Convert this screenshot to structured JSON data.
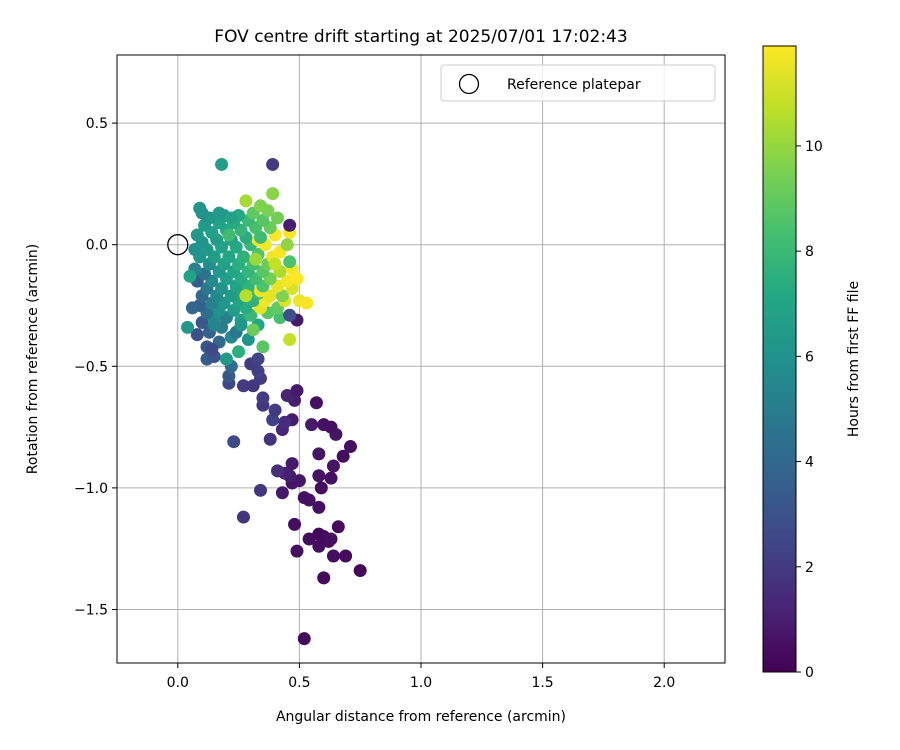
{
  "chart_data": {
    "type": "scatter",
    "title": "FOV centre drift starting at 2025/07/01 17:02:43",
    "xlabel": "Angular distance from reference (arcmin)",
    "ylabel": "Rotation from reference (arcmin)",
    "xlim": [
      -0.25,
      2.25
    ],
    "ylim": [
      -1.72,
      0.78
    ],
    "xticks": [
      0.0,
      0.5,
      1.0,
      1.5,
      2.0
    ],
    "xtick_labels": [
      "0.0",
      "0.5",
      "1.0",
      "1.5",
      "2.0"
    ],
    "yticks": [
      -1.5,
      -1.0,
      -0.5,
      0.0,
      0.5
    ],
    "ytick_labels": [
      "−1.5",
      "−1.0",
      "−0.5",
      "0.0",
      "0.5"
    ],
    "grid": true,
    "legend": {
      "placement": "top-right",
      "entries": [
        "Reference platepar"
      ]
    },
    "reference_point": {
      "x": 0.0,
      "y": 0.0,
      "marker": "open-circle"
    },
    "colorbar": {
      "label": "Hours from first FF file",
      "colormap": "viridis",
      "range": [
        0,
        11.9
      ],
      "ticks": [
        0,
        2,
        4,
        6,
        8,
        10
      ],
      "tick_labels": [
        "0",
        "2",
        "4",
        "6",
        "8",
        "10"
      ]
    },
    "series": [
      {
        "marker": "filled-circle",
        "points": [
          [
            0.52,
            -1.62,
            0.3
          ],
          [
            0.6,
            -1.37,
            0.3
          ],
          [
            0.75,
            -1.34,
            0.2
          ],
          [
            0.69,
            -1.28,
            0.3
          ],
          [
            0.64,
            -1.28,
            0.4
          ],
          [
            0.49,
            -1.26,
            0.5
          ],
          [
            0.58,
            -1.24,
            0.4
          ],
          [
            0.62,
            -1.22,
            0.3
          ],
          [
            0.54,
            -1.21,
            0.4
          ],
          [
            0.58,
            -1.19,
            0.2
          ],
          [
            0.6,
            -1.2,
            0.3
          ],
          [
            0.63,
            -1.21,
            0.5
          ],
          [
            0.66,
            -1.16,
            0.3
          ],
          [
            0.48,
            -1.15,
            0.4
          ],
          [
            0.27,
            -1.12,
            1.8
          ],
          [
            0.58,
            -1.08,
            0.5
          ],
          [
            0.54,
            -1.05,
            0.6
          ],
          [
            0.52,
            -1.04,
            0.5
          ],
          [
            0.43,
            -1.02,
            0.8
          ],
          [
            0.34,
            -1.01,
            1.9
          ],
          [
            0.59,
            -1.0,
            0.4
          ],
          [
            0.47,
            -0.98,
            0.6
          ],
          [
            0.5,
            -0.97,
            0.7
          ],
          [
            0.63,
            -0.96,
            0.5
          ],
          [
            0.58,
            -0.95,
            0.6
          ],
          [
            0.46,
            -0.95,
            0.9
          ],
          [
            0.44,
            -0.94,
            1.1
          ],
          [
            0.41,
            -0.93,
            1.6
          ],
          [
            0.64,
            -0.91,
            0.6
          ],
          [
            0.47,
            -0.9,
            0.8
          ],
          [
            0.68,
            -0.87,
            0.4
          ],
          [
            0.58,
            -0.86,
            0.7
          ],
          [
            0.23,
            -0.81,
            2.7
          ],
          [
            0.71,
            -0.83,
            0.5
          ],
          [
            0.38,
            -0.8,
            1.8
          ],
          [
            0.65,
            -0.78,
            0.6
          ],
          [
            0.63,
            -0.75,
            0.5
          ],
          [
            0.55,
            -0.74,
            0.8
          ],
          [
            0.43,
            -0.76,
            1.2
          ],
          [
            0.6,
            -0.74,
            0.5
          ],
          [
            0.47,
            -0.72,
            0.9
          ],
          [
            0.44,
            -0.73,
            1.5
          ],
          [
            0.39,
            -0.72,
            2.3
          ],
          [
            0.4,
            -0.68,
            2.0
          ],
          [
            0.35,
            -0.66,
            1.9
          ],
          [
            0.57,
            -0.65,
            0.5
          ],
          [
            0.48,
            -0.64,
            1.0
          ],
          [
            0.45,
            -0.62,
            1.2
          ],
          [
            0.49,
            -0.6,
            0.8
          ],
          [
            0.35,
            -0.63,
            2.1
          ],
          [
            0.27,
            -0.58,
            2.0
          ],
          [
            0.31,
            -0.58,
            1.9
          ],
          [
            0.34,
            -0.55,
            2.1
          ],
          [
            0.21,
            -0.57,
            2.5
          ],
          [
            0.21,
            -0.54,
            3.2
          ],
          [
            0.33,
            -0.52,
            2.3
          ],
          [
            0.3,
            -0.49,
            2.0
          ],
          [
            0.33,
            -0.47,
            2.4
          ],
          [
            0.22,
            -0.5,
            4.1
          ],
          [
            0.12,
            -0.47,
            3.5
          ],
          [
            0.15,
            -0.46,
            3.0
          ],
          [
            0.2,
            -0.47,
            6.4
          ],
          [
            0.35,
            -0.42,
            8.8
          ],
          [
            0.12,
            -0.42,
            3.3
          ],
          [
            0.17,
            -0.4,
            4.0
          ],
          [
            0.46,
            -0.39,
            10.9
          ],
          [
            0.29,
            -0.39,
            6.1
          ],
          [
            0.22,
            -0.38,
            5.5
          ],
          [
            0.08,
            -0.37,
            2.9
          ],
          [
            0.13,
            -0.36,
            3.7
          ],
          [
            0.24,
            -0.36,
            4.7
          ],
          [
            0.04,
            -0.34,
            6.3
          ],
          [
            0.18,
            -0.34,
            5.0
          ],
          [
            0.33,
            -0.33,
            7.1
          ],
          [
            0.49,
            -0.31,
            0.9
          ],
          [
            0.42,
            -0.3,
            8.4
          ],
          [
            0.1,
            -0.32,
            3.2
          ],
          [
            0.15,
            -0.31,
            5.8
          ],
          [
            0.2,
            -0.3,
            5.1
          ],
          [
            0.26,
            -0.31,
            6.8
          ],
          [
            0.3,
            -0.29,
            7.9
          ],
          [
            0.37,
            -0.28,
            8.7
          ],
          [
            0.46,
            -0.29,
            2.8
          ],
          [
            0.12,
            -0.28,
            4.4
          ],
          [
            0.17,
            -0.27,
            6.0
          ],
          [
            0.23,
            -0.27,
            6.6
          ],
          [
            0.28,
            -0.26,
            7.3
          ],
          [
            0.34,
            -0.26,
            11.5
          ],
          [
            0.41,
            -0.26,
            9.0
          ],
          [
            0.09,
            -0.25,
            3.6
          ],
          [
            0.14,
            -0.24,
            5.2
          ],
          [
            0.19,
            -0.24,
            6.2
          ],
          [
            0.25,
            -0.23,
            7.0
          ],
          [
            0.31,
            -0.23,
            7.6
          ],
          [
            0.36,
            -0.23,
            11.7
          ],
          [
            0.44,
            -0.23,
            11.3
          ],
          [
            0.5,
            -0.23,
            11.6
          ],
          [
            0.53,
            -0.24,
            11.8
          ],
          [
            0.1,
            -0.21,
            4.0
          ],
          [
            0.16,
            -0.21,
            5.5
          ],
          [
            0.22,
            -0.21,
            6.5
          ],
          [
            0.27,
            -0.2,
            7.2
          ],
          [
            0.33,
            -0.2,
            8.0
          ],
          [
            0.38,
            -0.21,
            11.4
          ],
          [
            0.43,
            -0.21,
            9.6
          ],
          [
            0.34,
            -0.19,
            11.6
          ],
          [
            0.12,
            -0.18,
            4.8
          ],
          [
            0.18,
            -0.18,
            6.1
          ],
          [
            0.24,
            -0.17,
            6.9
          ],
          [
            0.29,
            -0.17,
            7.7
          ],
          [
            0.35,
            -0.17,
            8.5
          ],
          [
            0.41,
            -0.17,
            11.5
          ],
          [
            0.47,
            -0.18,
            11.2
          ],
          [
            0.08,
            -0.15,
            3.4
          ],
          [
            0.14,
            -0.15,
            5.6
          ],
          [
            0.2,
            -0.14,
            6.7
          ],
          [
            0.26,
            -0.14,
            7.4
          ],
          [
            0.32,
            -0.14,
            8.2
          ],
          [
            0.38,
            -0.14,
            9.4
          ],
          [
            0.45,
            -0.15,
            11.7
          ],
          [
            0.49,
            -0.14,
            11.9
          ],
          [
            0.11,
            -0.12,
            4.5
          ],
          [
            0.17,
            -0.11,
            6.3
          ],
          [
            0.23,
            -0.11,
            7.1
          ],
          [
            0.29,
            -0.11,
            7.8
          ],
          [
            0.35,
            -0.11,
            8.8
          ],
          [
            0.42,
            -0.11,
            10.4
          ],
          [
            0.47,
            -0.1,
            11.8
          ],
          [
            0.07,
            -0.1,
            5.3
          ],
          [
            0.13,
            -0.08,
            5.9
          ],
          [
            0.19,
            -0.08,
            6.8
          ],
          [
            0.25,
            -0.08,
            7.5
          ],
          [
            0.31,
            -0.08,
            8.3
          ],
          [
            0.37,
            -0.08,
            9.2
          ],
          [
            0.46,
            -0.07,
            8.5
          ],
          [
            0.09,
            -0.05,
            6.2
          ],
          [
            0.15,
            -0.05,
            6.6
          ],
          [
            0.21,
            -0.05,
            7.0
          ],
          [
            0.27,
            -0.05,
            7.6
          ],
          [
            0.33,
            -0.04,
            8.6
          ],
          [
            0.39,
            -0.05,
            11.6
          ],
          [
            0.42,
            -0.03,
            11.8
          ],
          [
            0.07,
            -0.02,
            6.0
          ],
          [
            0.12,
            -0.02,
            6.4
          ],
          [
            0.18,
            -0.01,
            6.9
          ],
          [
            0.24,
            -0.01,
            7.2
          ],
          [
            0.3,
            0.0,
            7.9
          ],
          [
            0.36,
            0.0,
            11.7
          ],
          [
            0.33,
            0.02,
            11.8
          ],
          [
            0.1,
            0.01,
            6.1
          ],
          [
            0.16,
            0.02,
            6.7
          ],
          [
            0.22,
            0.02,
            7.0
          ],
          [
            0.28,
            0.03,
            7.4
          ],
          [
            0.34,
            0.03,
            8.1
          ],
          [
            0.4,
            0.04,
            11.9
          ],
          [
            0.46,
            0.05,
            11.8
          ],
          [
            0.08,
            0.04,
            6.3
          ],
          [
            0.14,
            0.05,
            6.8
          ],
          [
            0.2,
            0.06,
            7.1
          ],
          [
            0.26,
            0.06,
            7.8
          ],
          [
            0.32,
            0.07,
            8.4
          ],
          [
            0.38,
            0.07,
            9.1
          ],
          [
            0.11,
            0.08,
            6.5
          ],
          [
            0.17,
            0.09,
            6.9
          ],
          [
            0.23,
            0.09,
            7.3
          ],
          [
            0.29,
            0.1,
            8.0
          ],
          [
            0.35,
            0.1,
            8.7
          ],
          [
            0.41,
            0.11,
            9.3
          ],
          [
            0.46,
            0.08,
            1.0
          ],
          [
            0.13,
            0.11,
            6.2
          ],
          [
            0.19,
            0.12,
            6.6
          ],
          [
            0.25,
            0.12,
            7.2
          ],
          [
            0.31,
            0.13,
            8.9
          ],
          [
            0.37,
            0.14,
            9.5
          ],
          [
            0.1,
            0.13,
            6.0
          ],
          [
            0.17,
            0.13,
            6.4
          ],
          [
            0.22,
            0.11,
            6.8
          ],
          [
            0.34,
            0.16,
            9.6
          ],
          [
            0.28,
            0.18,
            10.3
          ],
          [
            0.09,
            0.15,
            6.1
          ],
          [
            0.39,
            0.21,
            9.8
          ],
          [
            0.18,
            0.33,
            6.6
          ],
          [
            0.39,
            0.33,
            2.0
          ],
          [
            0.45,
            0.0,
            9.9
          ],
          [
            0.31,
            -0.35,
            9.2
          ],
          [
            0.25,
            -0.44,
            7.5
          ],
          [
            0.14,
            -0.43,
            2.6
          ],
          [
            0.28,
            -0.21,
            10.6
          ],
          [
            0.32,
            -0.06,
            10.1
          ],
          [
            0.21,
            0.04,
            8.2
          ],
          [
            0.15,
            -0.33,
            5.4
          ],
          [
            0.05,
            -0.13,
            7.0
          ],
          [
            0.06,
            -0.26,
            3.9
          ],
          [
            0.26,
            -0.33,
            6.2
          ],
          [
            0.4,
            -0.08,
            10.8
          ]
        ]
      }
    ]
  }
}
